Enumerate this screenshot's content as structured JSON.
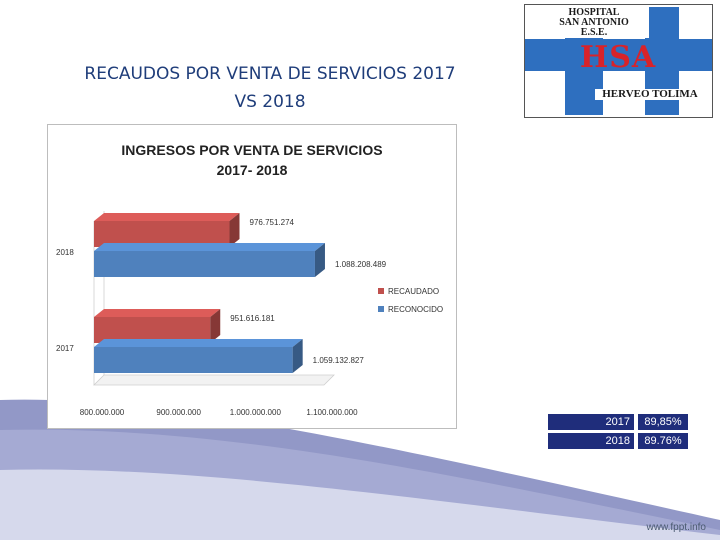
{
  "slide": {
    "title_line1": "RECAUDOS POR VENTA DE SERVICIOS 2017",
    "title_line2": "VS 2018",
    "footer_url": "www.fppt.info"
  },
  "logo": {
    "line1": "HOSPITAL",
    "line2": "SAN ANTONIO",
    "line3": "E.S.E.",
    "abbr": "HSA",
    "bottom": "HERVEO TOLIMA"
  },
  "colors": {
    "recaudado": "#c0504d",
    "reconocido": "#4f81bd",
    "title_blue": "#1f3d7a",
    "table_navy": "#1f2d7b"
  },
  "chart_data": {
    "type": "bar",
    "orientation": "horizontal",
    "title": "INGRESOS POR VENTA DE SERVICIOS 2017- 2018",
    "title_line1": "INGRESOS POR VENTA DE SERVICIOS",
    "title_line2": "2017- 2018",
    "categories": [
      "2018",
      "2017"
    ],
    "series": [
      {
        "name": "RECAUDADO",
        "values": [
          976751274,
          951616181
        ],
        "labels": [
          "976.751.274",
          "951.616.181"
        ]
      },
      {
        "name": "RECONOCIDO",
        "values": [
          1088208489,
          1059132827
        ],
        "labels": [
          "1.088.208.489",
          "1.059.132.827"
        ]
      }
    ],
    "xlim": [
      800000000,
      1100000000
    ],
    "xticks": [
      800000000,
      900000000,
      1000000000,
      1100000000
    ],
    "xtick_labels": [
      "800.000.000",
      "900.000.000",
      "1.000.000.000",
      "1.100.000.000"
    ],
    "legend_position": "right"
  },
  "summary_table": {
    "rows": [
      {
        "year": "2017",
        "percent": "89,85%"
      },
      {
        "year": "2018",
        "percent": "89.76%"
      }
    ]
  }
}
